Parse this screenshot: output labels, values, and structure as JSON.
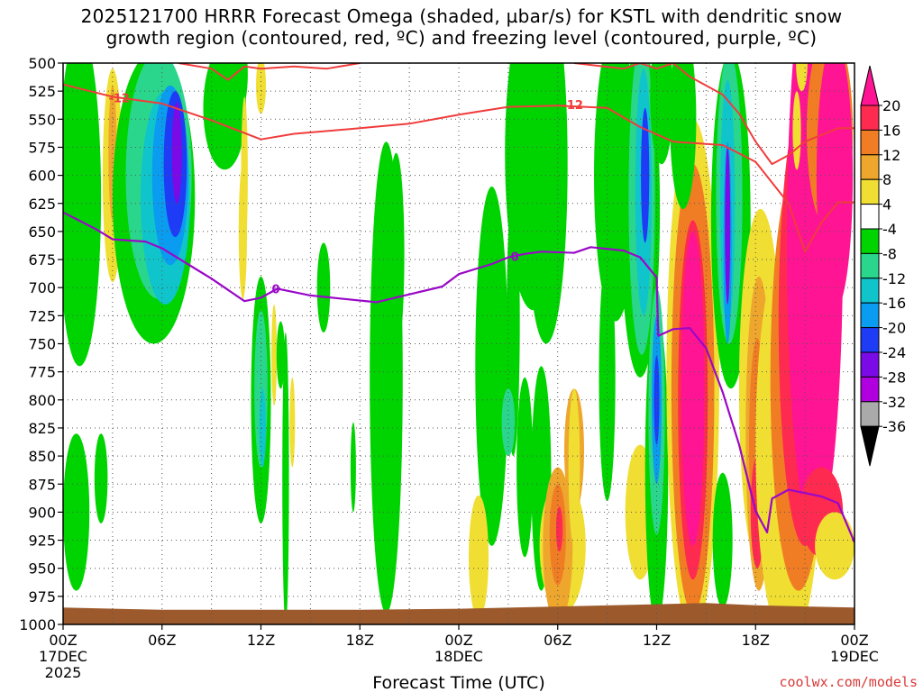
{
  "title_line1": "2025121700 HRRR Forecast Omega (shaded, µbar/s) for KSTL with dendritic snow",
  "title_line2": "growth region (contoured, red, ºC) and freezing level (contoured, purple, ºC)",
  "credit": "coolwx.com/models",
  "chart_data": {
    "type": "heatmap",
    "xlabel": "Forecast Time (UTC)",
    "x_hours": [
      0,
      48
    ],
    "x_ticks": [
      {
        "h": 0,
        "label": "00Z",
        "sub": "17DEC",
        "sub2": "2025"
      },
      {
        "h": 6,
        "label": "06Z"
      },
      {
        "h": 12,
        "label": "12Z"
      },
      {
        "h": 18,
        "label": "18Z"
      },
      {
        "h": 24,
        "label": "00Z",
        "sub": "18DEC"
      },
      {
        "h": 30,
        "label": "06Z"
      },
      {
        "h": 36,
        "label": "12Z"
      },
      {
        "h": 42,
        "label": "18Z"
      },
      {
        "h": 48,
        "label": "00Z",
        "sub": "19DEC"
      }
    ],
    "y_levels": [
      500,
      525,
      550,
      575,
      600,
      625,
      650,
      675,
      700,
      725,
      750,
      775,
      800,
      825,
      850,
      875,
      900,
      925,
      950,
      975,
      1000
    ],
    "colorbar": {
      "labels": [
        "20",
        "16",
        "12",
        "8",
        "4",
        "-4",
        "-8",
        "-12",
        "-16",
        "-20",
        "-24",
        "-28",
        "-32",
        "-36"
      ],
      "colors": [
        "#ff1493",
        "#ff2a50",
        "#f07d24",
        "#eea72c",
        "#f0de32",
        "#ffffff",
        "#00d400",
        "#2ad68c",
        "#10c4cc",
        "#0a9cf0",
        "#1e3cf5",
        "#7a0ae6",
        "#b000e0",
        "#aaaaaa",
        "#000000"
      ]
    },
    "ground_color": "#9c5a2c",
    "ground_surface_hpa": [
      [
        0,
        985
      ],
      [
        6,
        987
      ],
      [
        12,
        987
      ],
      [
        18,
        987
      ],
      [
        24,
        986
      ],
      [
        30,
        984
      ],
      [
        36,
        982
      ],
      [
        39,
        981
      ],
      [
        42,
        983
      ],
      [
        48,
        985
      ]
    ],
    "contours": {
      "dgz_top_minus12": {
        "label": "-12",
        "color": "#f03c3c",
        "points": [
          [
            0,
            519
          ],
          [
            3,
            530
          ],
          [
            6,
            536
          ],
          [
            9,
            551
          ],
          [
            12,
            568
          ],
          [
            14,
            563
          ],
          [
            18,
            558
          ],
          [
            21,
            554
          ],
          [
            24,
            546
          ],
          [
            27,
            539
          ],
          [
            30,
            538
          ],
          [
            33,
            540
          ],
          [
            35,
            557
          ],
          [
            37,
            570
          ],
          [
            40,
            573
          ],
          [
            42,
            588
          ],
          [
            44,
            625
          ],
          [
            45,
            668
          ],
          [
            46,
            642
          ],
          [
            47,
            624
          ],
          [
            48,
            624
          ]
        ]
      },
      "dgz_bottom": {
        "color": "#f03c3c",
        "points": [
          [
            7,
            500
          ],
          [
            9,
            505
          ],
          [
            10,
            515
          ],
          [
            11,
            503
          ],
          [
            12,
            505
          ],
          [
            14,
            503
          ],
          [
            16,
            505
          ],
          [
            18,
            500
          ]
        ]
      },
      "dgz_right": {
        "color": "#f03c3c",
        "points": [
          [
            31,
            500
          ],
          [
            34,
            505
          ],
          [
            35,
            500
          ],
          [
            36,
            505
          ],
          [
            37,
            500
          ],
          [
            38,
            512
          ],
          [
            40,
            528
          ],
          [
            41,
            545
          ],
          [
            42,
            570
          ],
          [
            43,
            590
          ],
          [
            44,
            582
          ],
          [
            45,
            570
          ],
          [
            47,
            558
          ],
          [
            48,
            558
          ]
        ]
      },
      "freezing_0": {
        "label": "0",
        "color": "#9a08c8",
        "points": [
          [
            0,
            633
          ],
          [
            2,
            648
          ],
          [
            3,
            657
          ],
          [
            5,
            659
          ],
          [
            6,
            665
          ],
          [
            8,
            683
          ],
          [
            9,
            692
          ],
          [
            11,
            712
          ],
          [
            12,
            709
          ],
          [
            13,
            701
          ],
          [
            15,
            707
          ],
          [
            17,
            710
          ],
          [
            19,
            713
          ],
          [
            21,
            706
          ],
          [
            23,
            699
          ],
          [
            24,
            688
          ],
          [
            26,
            679
          ],
          [
            27,
            673
          ],
          [
            28,
            670
          ],
          [
            29,
            668
          ],
          [
            31,
            669
          ],
          [
            32,
            664
          ],
          [
            34,
            667
          ],
          [
            35,
            673
          ],
          [
            36,
            691
          ],
          [
            36.1,
            743
          ],
          [
            37,
            737
          ],
          [
            38,
            736
          ],
          [
            39,
            754
          ],
          [
            40,
            793
          ],
          [
            41,
            840
          ],
          [
            42,
            899
          ],
          [
            42.7,
            918
          ],
          [
            43,
            888
          ],
          [
            44,
            880
          ],
          [
            46,
            886
          ],
          [
            47,
            892
          ],
          [
            48,
            927
          ]
        ]
      }
    }
  }
}
